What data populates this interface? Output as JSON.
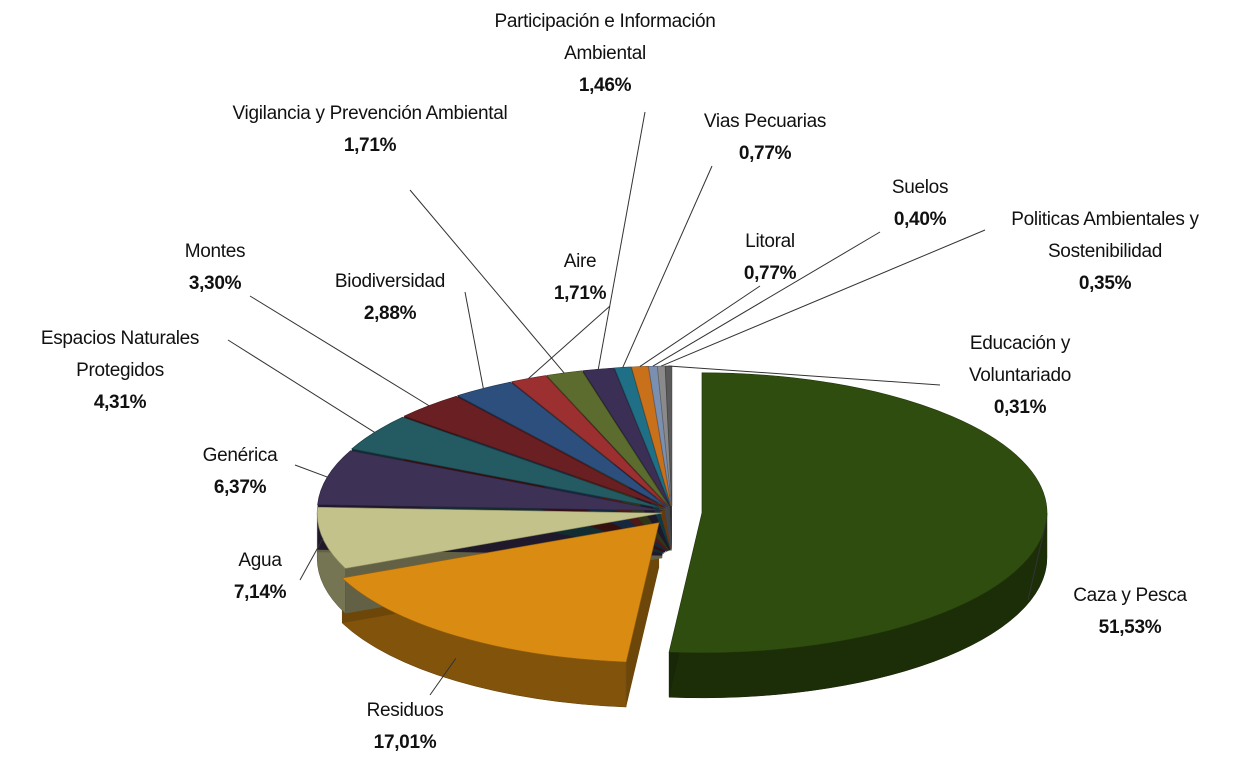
{
  "chart_data": {
    "type": "pie",
    "categories": [
      "Caza y Pesca",
      "Residuos",
      "Agua",
      "Genérica",
      "Espacios Naturales Protegidos",
      "Montes",
      "Biodiversidad",
      "Aire",
      "Vigilancia y Prevención Ambiental",
      "Participación e Información Ambiental",
      "Vias Pecuarias",
      "Litoral",
      "Suelos",
      "Politicas Ambientales y Sostenibilidad",
      "Educación y Voluntariado"
    ],
    "values": [
      51.53,
      17.01,
      7.14,
      6.37,
      4.31,
      3.3,
      2.88,
      1.71,
      1.71,
      1.46,
      0.77,
      0.77,
      0.4,
      0.35,
      0.31
    ],
    "value_labels": [
      "51,53%",
      "17,01%",
      "7,14%",
      "6,37%",
      "4,31%",
      "3,30%",
      "2,88%",
      "1,71%",
      "1,71%",
      "1,46%",
      "0,77%",
      "0,77%",
      "0,40%",
      "0,35%",
      "0,31%"
    ],
    "colors": [
      "#2f4d0e",
      "#d98b12",
      "#c3c28a",
      "#3e3156",
      "#245a62",
      "#6a1f22",
      "#2c4f7e",
      "#9c2f2f",
      "#5c6b2e",
      "#3b2f55",
      "#1f6f86",
      "#c9701a",
      "#7b8fb0",
      "#8a8a8a",
      "#5a5a5a"
    ]
  }
}
